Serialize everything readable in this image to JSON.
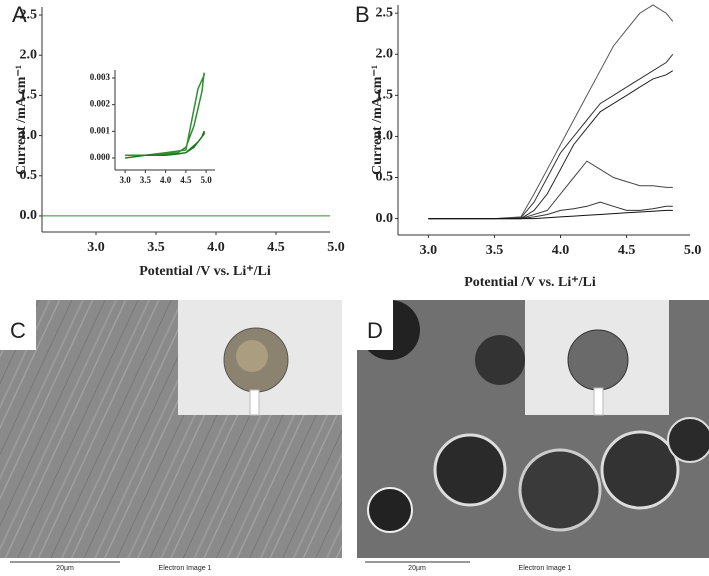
{
  "chart_data": [
    {
      "type": "line",
      "panel_label": "A",
      "xlabel": "Potential /V vs. Li⁺/Li",
      "ylabel": "Current /mA cm⁻¹",
      "xlim": [
        2.55,
        4.95
      ],
      "ylim": [
        -0.2,
        2.6
      ],
      "xticks": [
        {
          "value": 3.0,
          "label": "3.0"
        },
        {
          "value": 3.5,
          "label": "3.5"
        },
        {
          "value": 4.0,
          "label": "4.0"
        },
        {
          "value": 4.5,
          "label": "4.5"
        },
        {
          "value": 5.0,
          "label": "5.0"
        }
      ],
      "yticks": [
        {
          "value": 0,
          "label": "0.0"
        },
        {
          "value": 0.5,
          "label": "0.5"
        },
        {
          "value": 1.0,
          "label": "1.0"
        },
        {
          "value": 1.5,
          "label": "1.5"
        },
        {
          "value": 2.0,
          "label": "2.0"
        },
        {
          "value": 2.5,
          "label": "2.5"
        }
      ],
      "x": [
        2.55,
        3.0,
        3.5,
        4.0,
        4.5,
        4.95
      ],
      "series": [
        {
          "color": "#2f8f2f",
          "values": [
            0,
            0,
            0,
            0,
            0,
            0
          ]
        }
      ],
      "inset": {
        "xlim": [
          2.75,
          5.22
        ],
        "ylim": [
          -0.00045,
          0.0033
        ],
        "xticks": [
          {
            "value": 3.0,
            "label": "3.0"
          },
          {
            "value": 3.5,
            "label": "3.5"
          },
          {
            "value": 4.0,
            "label": "4.0"
          },
          {
            "value": 4.5,
            "label": "4.5"
          },
          {
            "value": 5.0,
            "label": "5.0"
          }
        ],
        "yticks": [
          {
            "value": 0,
            "label": "0.000"
          },
          {
            "value": 0.001,
            "label": "0.001"
          },
          {
            "value": 0.002,
            "label": "0.002"
          },
          {
            "value": 0.003,
            "label": "0.003"
          }
        ],
        "x": [
          3.0,
          3.5,
          4.0,
          4.3,
          4.5,
          4.7,
          4.9,
          4.95,
          4.95,
          4.8,
          4.5,
          4.0,
          3.5,
          3.0
        ],
        "series": [
          {
            "color": "#2f8f2f",
            "values": [
              0.0001,
              0.0001,
              0.00015,
              0.0002,
              0.0004,
              0.0012,
              0.0025,
              0.0032,
              0.0031,
              0.0026,
              0.0003,
              0.0002,
              0.0001,
              0.0001
            ]
          },
          {
            "color": "#1e7a1e",
            "values": [
              0,
              0.0001,
              0.0001,
              0.00015,
              0.0002,
              0.0004,
              0.0008,
              0.001,
              0.0009,
              0.0006,
              0.0002,
              0.0001,
              0.0001,
              0
            ]
          }
        ]
      }
    },
    {
      "type": "line",
      "panel_label": "B",
      "xlabel": "Potential /V vs. Li⁺/Li",
      "ylabel": "Current /mA cm⁻¹",
      "xlim": [
        2.77,
        4.98
      ],
      "ylim": [
        -0.2,
        2.6
      ],
      "xticks": [
        {
          "value": 3.0,
          "label": "3.0"
        },
        {
          "value": 3.5,
          "label": "3.5"
        },
        {
          "value": 4.0,
          "label": "4.0"
        },
        {
          "value": 4.5,
          "label": "4.5"
        },
        {
          "value": 5.0,
          "label": "5.0"
        }
      ],
      "yticks": [
        {
          "value": 0,
          "label": "0.0"
        },
        {
          "value": 0.5,
          "label": "0.5"
        },
        {
          "value": 1.0,
          "label": "1.0"
        },
        {
          "value": 1.5,
          "label": "1.5"
        },
        {
          "value": 2.0,
          "label": "2.0"
        },
        {
          "value": 2.5,
          "label": "2.5"
        }
      ],
      "x": [
        3.0,
        3.5,
        3.7,
        3.8,
        3.9,
        4.0,
        4.1,
        4.2,
        4.3,
        4.4,
        4.5,
        4.6,
        4.7,
        4.8,
        4.85
      ],
      "series": [
        {
          "color": "#555555",
          "values": [
            0,
            0,
            0.02,
            0.3,
            0.6,
            0.9,
            1.2,
            1.5,
            1.8,
            2.1,
            2.3,
            2.5,
            2.6,
            2.5,
            2.4
          ]
        },
        {
          "color": "#333333",
          "values": [
            0,
            0,
            0.01,
            0.2,
            0.5,
            0.8,
            1.0,
            1.2,
            1.4,
            1.5,
            1.6,
            1.7,
            1.8,
            1.9,
            2.0
          ]
        },
        {
          "color": "#222222",
          "values": [
            0,
            0,
            0,
            0.1,
            0.3,
            0.6,
            0.9,
            1.1,
            1.3,
            1.4,
            1.5,
            1.6,
            1.7,
            1.75,
            1.8
          ]
        },
        {
          "color": "#444444",
          "values": [
            0,
            0,
            0,
            0.05,
            0.1,
            0.3,
            0.5,
            0.7,
            0.6,
            0.5,
            0.45,
            0.4,
            0.4,
            0.38,
            0.38
          ]
        },
        {
          "color": "#333333",
          "values": [
            0,
            0,
            0,
            0.02,
            0.05,
            0.1,
            0.12,
            0.15,
            0.2,
            0.15,
            0.1,
            0.1,
            0.12,
            0.15,
            0.15
          ]
        },
        {
          "color": "#111111",
          "values": [
            0,
            0,
            0,
            0,
            0.01,
            0.02,
            0.03,
            0.04,
            0.05,
            0.06,
            0.07,
            0.08,
            0.09,
            0.1,
            0.1
          ]
        }
      ]
    }
  ],
  "images": [
    {
      "panel_label": "C",
      "scale_bar": "20µm",
      "caption": "Electron Image 1"
    },
    {
      "panel_label": "D",
      "scale_bar": "20µm",
      "caption": "Electron Image 1"
    }
  ]
}
